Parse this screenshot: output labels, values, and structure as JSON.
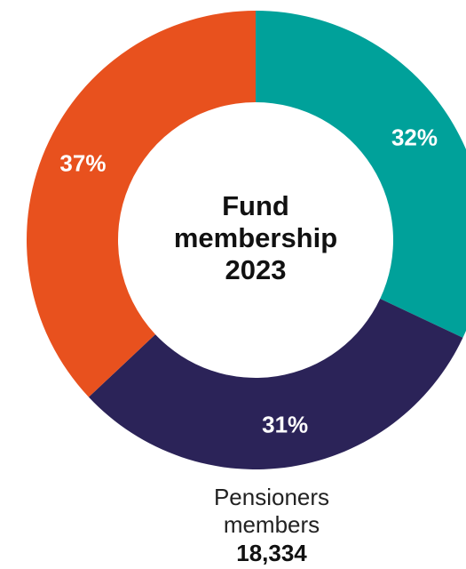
{
  "chart_data": {
    "type": "donut",
    "title": [
      "Fund",
      "membership",
      "2023"
    ],
    "values": [
      32,
      31,
      37
    ],
    "value_labels": [
      "32%",
      "31%",
      "37%"
    ],
    "colors": [
      "#00a19a",
      "#2b2358",
      "#e8511e"
    ],
    "annotation": {
      "lines": [
        "Pensioners",
        "members"
      ],
      "value": "18,334"
    }
  }
}
